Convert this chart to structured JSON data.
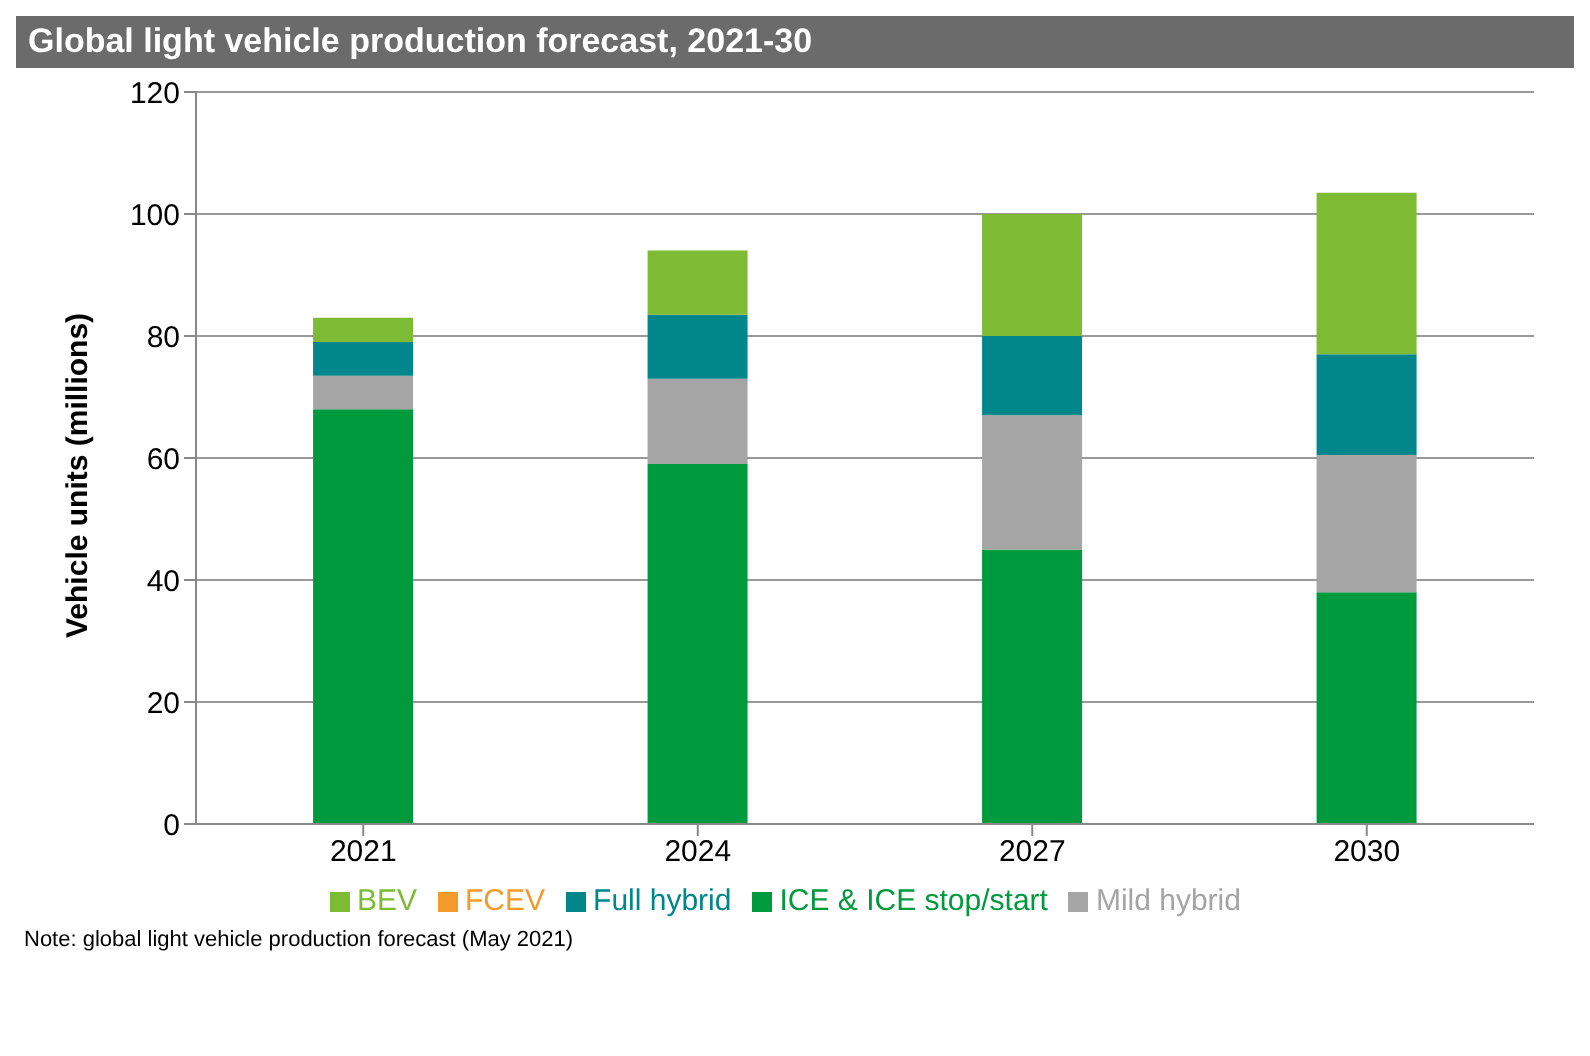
{
  "chart_data": {
    "type": "bar",
    "title": "Global light vehicle production forecast, 2021-30",
    "ylabel": "Vehicle units (millions)",
    "categories": [
      "2021",
      "2024",
      "2027",
      "2030"
    ],
    "stacked": true,
    "series": [
      {
        "name": "ICE & ICE stop/start",
        "color": "#009a3e",
        "values": [
          68,
          59,
          45,
          38
        ]
      },
      {
        "name": "Mild hybrid",
        "color": "#a5a5a5",
        "values": [
          5.5,
          14,
          22,
          22.5
        ]
      },
      {
        "name": "Full hybrid",
        "color": "#00868b",
        "values": [
          5.5,
          10.5,
          13,
          16.5
        ]
      },
      {
        "name": "FCEV",
        "color": "#f39a2b",
        "values": [
          0,
          0,
          0,
          0
        ]
      },
      {
        "name": "BEV",
        "color": "#7dbb34",
        "values": [
          4,
          10.5,
          20,
          26.5
        ]
      }
    ],
    "ylim": [
      0,
      120
    ],
    "yticks": [
      0,
      20,
      40,
      60,
      80,
      100,
      120
    ],
    "grid": "y",
    "legend": "bottom",
    "annotations": [
      "Note: global light vehicle production forecast (May 2021)"
    ]
  }
}
